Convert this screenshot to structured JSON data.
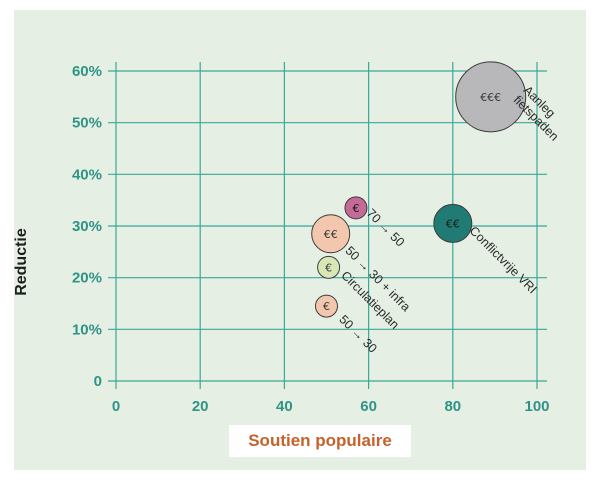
{
  "chart_data": {
    "type": "scatter",
    "title": "",
    "xlabel": "Soutien populaire",
    "ylabel": "Reductie",
    "xlim": [
      0,
      100
    ],
    "ylim": [
      0,
      60
    ],
    "x_ticks": [
      0,
      20,
      40,
      60,
      80,
      100
    ],
    "y_ticks": [
      0,
      10,
      20,
      30,
      40,
      50,
      60
    ],
    "y_tick_format": "percent",
    "grid": true,
    "points": [
      {
        "x": 89,
        "y": 55,
        "label": "Aanleg fietspaden",
        "cost": "€€€",
        "color": "#b8b8bb"
      },
      {
        "x": 80,
        "y": 30.5,
        "label": "Conflictvrije VRI",
        "cost": "€€",
        "color": "#1f7b73"
      },
      {
        "x": 57,
        "y": 33.5,
        "label": "70 → 50",
        "cost": "€",
        "color": "#c56a97"
      },
      {
        "x": 51,
        "y": 28.5,
        "label": "",
        "cost": "€€",
        "color": "#f3c7ad"
      },
      {
        "x": 50.5,
        "y": 22,
        "label": "50 → 30 + infra",
        "cost": "€",
        "color": "#d9e7b7"
      },
      {
        "x": 50,
        "y": 14.5,
        "label": "Circulatieplan",
        "cost": "€",
        "color": "#f3c7ad"
      },
      {
        "x": 50,
        "y": 14.5,
        "label": "50 → 30",
        "cost": "",
        "color": ""
      }
    ]
  },
  "colors": {
    "background": "#e6efe4",
    "grid": "#3aa89a",
    "tick_text": "#2f9385",
    "xlabel": "#c7612c"
  }
}
